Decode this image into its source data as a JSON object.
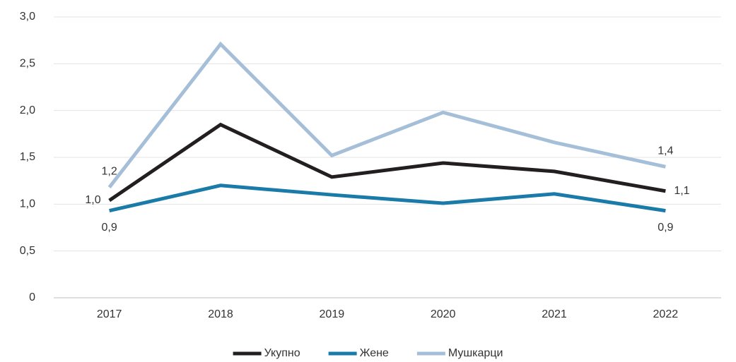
{
  "chart_data": {
    "type": "line",
    "categories": [
      "2017",
      "2018",
      "2019",
      "2020",
      "2021",
      "2022"
    ],
    "series": [
      {
        "name": "Укупно",
        "color": "#231f20",
        "values": [
          1.04,
          1.85,
          1.29,
          1.44,
          1.35,
          1.14
        ],
        "value_labels": [
          "1,0",
          null,
          null,
          null,
          null,
          "1,1"
        ]
      },
      {
        "name": "Жене",
        "color": "#1a7aa8",
        "values": [
          0.93,
          1.2,
          1.1,
          1.01,
          1.11,
          0.93
        ],
        "value_labels": [
          "0,9",
          null,
          null,
          null,
          null,
          "0,9"
        ]
      },
      {
        "name": "Мушкарци",
        "color": "#a6bfd8",
        "values": [
          1.18,
          2.71,
          1.52,
          1.98,
          1.66,
          1.4
        ],
        "value_labels": [
          "1,2",
          null,
          null,
          null,
          null,
          "1,4"
        ]
      }
    ],
    "ylim": [
      0,
      3
    ],
    "yticks": [
      0,
      {
        "value": 0.5,
        "label": "0,5"
      },
      {
        "value": 1,
        "label": "1,0"
      },
      {
        "value": 1.5,
        "label": "1,5"
      },
      {
        "value": 2,
        "label": "2,0"
      },
      {
        "value": 2.5,
        "label": "2,5"
      },
      {
        "value": 3,
        "label": "3,0"
      }
    ],
    "grid": true,
    "legend": "bottom"
  }
}
